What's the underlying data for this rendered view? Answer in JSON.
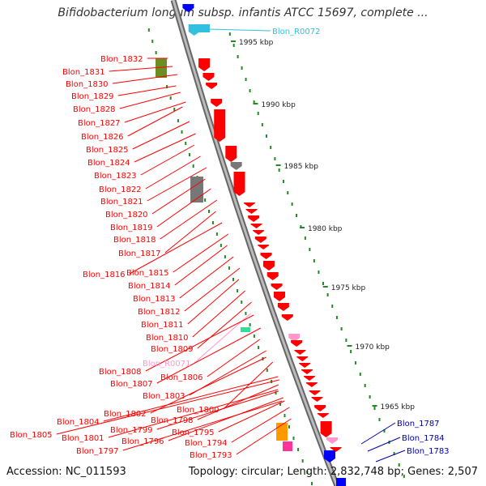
{
  "title": "Bifidobacterium longum subsp. infantis ATCC 15697, complete ...",
  "accession": "Accession: NC_011593",
  "summary": "Topology: circular; Length: 2,832,748 bp; Genes: 2,507",
  "colors": {
    "cds_reverse": "#ff0000",
    "cds_forward": "#0000ff",
    "trna_reverse": "#ff99cc",
    "trna_forward": "#33c0e0",
    "backbone": "#888888",
    "gc_ticks": "#228b22"
  },
  "scale_labels": [
    "1995 kbp",
    "1990 kbp",
    "1985 kbp",
    "1980 kbp",
    "1975 kbp",
    "1970 kbp",
    "1965 kbp"
  ],
  "left_labels": [
    {
      "text": "Blon_1832",
      "type": "cds"
    },
    {
      "text": "Blon_1831",
      "type": "cds"
    },
    {
      "text": "Blon_1830",
      "type": "cds"
    },
    {
      "text": "Blon_1829",
      "type": "cds"
    },
    {
      "text": "Blon_1828",
      "type": "cds"
    },
    {
      "text": "Blon_1827",
      "type": "cds"
    },
    {
      "text": "Blon_1826",
      "type": "cds"
    },
    {
      "text": "Blon_1825",
      "type": "cds"
    },
    {
      "text": "Blon_1824",
      "type": "cds"
    },
    {
      "text": "Blon_1823",
      "type": "cds"
    },
    {
      "text": "Blon_1822",
      "type": "cds"
    },
    {
      "text": "Blon_1821",
      "type": "cds"
    },
    {
      "text": "Blon_1820",
      "type": "cds"
    },
    {
      "text": "Blon_1819",
      "type": "cds"
    },
    {
      "text": "Blon_1818",
      "type": "cds"
    },
    {
      "text": "Blon_1817",
      "type": "cds"
    },
    {
      "text": "Blon_1816",
      "type": "cds"
    },
    {
      "text": "Blon_1815",
      "type": "cds"
    },
    {
      "text": "Blon_1814",
      "type": "cds"
    },
    {
      "text": "Blon_1813",
      "type": "cds"
    },
    {
      "text": "Blon_1812",
      "type": "cds"
    },
    {
      "text": "Blon_1811",
      "type": "cds"
    },
    {
      "text": "Blon_1810",
      "type": "cds"
    },
    {
      "text": "Blon_1809",
      "type": "cds"
    },
    {
      "text": "Blon_R0071",
      "type": "trna"
    },
    {
      "text": "Blon_1808",
      "type": "cds"
    },
    {
      "text": "Blon_1807",
      "type": "cds"
    },
    {
      "text": "Blon_1806",
      "type": "cds"
    },
    {
      "text": "Blon_1803",
      "type": "cds"
    },
    {
      "text": "Blon_1800",
      "type": "cds"
    },
    {
      "text": "Blon_1802",
      "type": "cds"
    },
    {
      "text": "Blon_1798",
      "type": "cds"
    },
    {
      "text": "Blon_1804",
      "type": "cds"
    },
    {
      "text": "Blon_1799",
      "type": "cds"
    },
    {
      "text": "Blon_1795",
      "type": "cds"
    },
    {
      "text": "Blon_1805",
      "type": "cds"
    },
    {
      "text": "Blon_1801",
      "type": "cds"
    },
    {
      "text": "Blon_1796",
      "type": "cds"
    },
    {
      "text": "Blon_1794",
      "type": "cds"
    },
    {
      "text": "Blon_1797",
      "type": "cds"
    },
    {
      "text": "Blon_1793",
      "type": "cds"
    }
  ],
  "right_labels": [
    {
      "text": "Blon_R0072",
      "type": "trna"
    },
    {
      "text": "Blon_1787",
      "type": "cds"
    },
    {
      "text": "Blon_1784",
      "type": "cds"
    },
    {
      "text": "Blon_1783",
      "type": "cds"
    }
  ]
}
